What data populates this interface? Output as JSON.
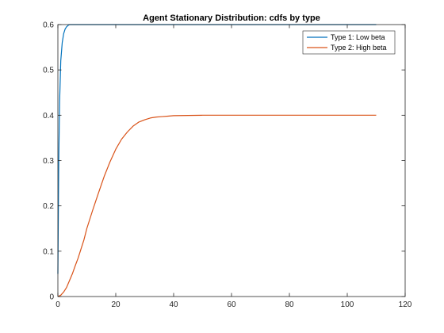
{
  "chart_data": {
    "type": "line",
    "title": "Agent Stationary Distribution: cdfs by type",
    "xlabel": "",
    "ylabel": "",
    "xlim": [
      0,
      120
    ],
    "ylim": [
      0,
      0.6
    ],
    "xticks": [
      0,
      20,
      40,
      60,
      80,
      100,
      120
    ],
    "yticks": [
      0,
      0.1,
      0.2,
      0.3,
      0.4,
      0.5,
      0.6
    ],
    "grid": false,
    "legend_position": "top-right",
    "series": [
      {
        "name": "Type 1: Low beta",
        "color": "#0072BD",
        "x": [
          0,
          0.3,
          0.6,
          1.0,
          1.5,
          2.0,
          2.5,
          3.0,
          3.5,
          4.0,
          5.0,
          6.0,
          8.0,
          110
        ],
        "y": [
          0.05,
          0.3,
          0.43,
          0.52,
          0.56,
          0.58,
          0.59,
          0.595,
          0.598,
          0.6,
          0.6,
          0.6,
          0.6,
          0.6
        ]
      },
      {
        "name": "Type 2: High beta",
        "color": "#D95319",
        "x": [
          0,
          1,
          2,
          3,
          4,
          5,
          6,
          7,
          8,
          9,
          10,
          12,
          14,
          16,
          18,
          20,
          22,
          24,
          26,
          28,
          30,
          32,
          34,
          36,
          38,
          40,
          45,
          50,
          60,
          70,
          80,
          90,
          100,
          110
        ],
        "y": [
          0,
          0.003,
          0.01,
          0.02,
          0.035,
          0.05,
          0.068,
          0.085,
          0.105,
          0.125,
          0.15,
          0.19,
          0.228,
          0.265,
          0.297,
          0.325,
          0.347,
          0.363,
          0.376,
          0.385,
          0.39,
          0.394,
          0.396,
          0.397,
          0.398,
          0.399,
          0.3995,
          0.4,
          0.4,
          0.4,
          0.4,
          0.4,
          0.4,
          0.4
        ]
      }
    ]
  }
}
